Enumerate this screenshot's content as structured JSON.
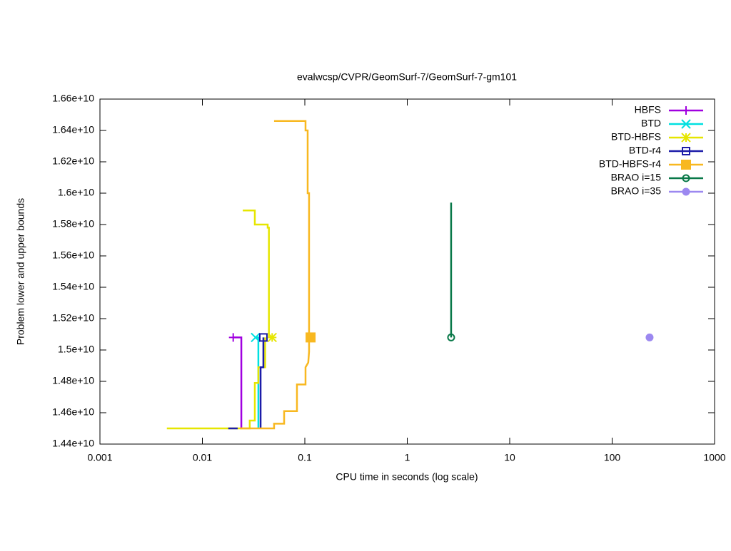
{
  "chart_data": {
    "type": "line",
    "title": "evalwcsp/CVPR/GeomSurf-7/GeomSurf-7-gm101",
    "x_label": "CPU time in seconds (log scale)",
    "y_label": "Problem lower and upper bounds",
    "x_log": true,
    "xlim": [
      0.001,
      1000
    ],
    "xticks": [
      0.001,
      0.01,
      0.1,
      1,
      10,
      100,
      1000
    ],
    "ylim": [
      14400000000,
      16600000000
    ],
    "yticks": [
      {
        "value": 14400000000,
        "label": "1.44e+10"
      },
      {
        "value": 14600000000,
        "label": "1.46e+10"
      },
      {
        "value": 14800000000,
        "label": "1.48e+10"
      },
      {
        "value": 15000000000,
        "label": "1.5e+10"
      },
      {
        "value": 15200000000,
        "label": "1.52e+10"
      },
      {
        "value": 15400000000,
        "label": "1.54e+10"
      },
      {
        "value": 15600000000,
        "label": "1.56e+10"
      },
      {
        "value": 15800000000,
        "label": "1.58e+10"
      },
      {
        "value": 16000000000,
        "label": "1.6e+10"
      },
      {
        "value": 16200000000,
        "label": "1.62e+10"
      },
      {
        "value": 16400000000,
        "label": "1.64e+10"
      },
      {
        "value": 16600000000,
        "label": "1.66e+10"
      }
    ],
    "legend": "top-right",
    "series": [
      {
        "name": "HBFS",
        "color": "#a000e0",
        "marker": "plus",
        "x": [
          0.024,
          0.024,
          0.02
        ],
        "values": [
          14500000000,
          15080000000,
          15080000000
        ]
      },
      {
        "name": "BTD",
        "color": "#00e0e0",
        "marker": "cross",
        "x": [
          0.0352,
          0.0352,
          0.033
        ],
        "values": [
          14500000000,
          15080000000,
          15080000000
        ]
      },
      {
        "name": "BTD-HBFS",
        "color": "#e6e600",
        "marker": "star",
        "x": [
          0.0045,
          0.029,
          0.029,
          0.0325,
          0.0325,
          0.0352,
          0.0352,
          0.041,
          0.041,
          null,
          0.0248,
          0.0325,
          0.0325,
          0.0434,
          0.0434,
          0.0446,
          0.0446,
          0.048
        ],
        "values": [
          14500000000,
          14500000000,
          14550000000,
          14550000000,
          14790000000,
          14790000000,
          14890000000,
          14890000000,
          15080000000,
          null,
          15890000000,
          15890000000,
          15800000000,
          15800000000,
          15780000000,
          15780000000,
          15080000000,
          15080000000
        ]
      },
      {
        "name": "BTD-r4",
        "color": "#1c1ca8",
        "marker": "open-square",
        "x": [
          0.0179,
          0.0221,
          null,
          0.037,
          0.037,
          0.0394,
          0.0394
        ],
        "values": [
          14500000000,
          14500000000,
          null,
          14500000000,
          14890000000,
          14890000000,
          15080000000
        ]
      },
      {
        "name": "BTD-HBFS-r4",
        "color": "#f8b820",
        "marker": "filled-square",
        "x": [
          0.0232,
          0.0501,
          0.0501,
          0.0628,
          0.0628,
          0.0838,
          0.0838,
          0.1016,
          0.1016,
          0.108,
          0.11,
          0.11,
          null,
          0.0501,
          0.1016,
          0.1016,
          0.1066,
          0.1066,
          0.11,
          0.11,
          0.1138
        ],
        "values": [
          14500000000,
          14500000000,
          14530000000,
          14530000000,
          14610000000,
          14610000000,
          14780000000,
          14780000000,
          14890000000,
          14920000000,
          14990000000,
          15080000000,
          null,
          16460000000,
          16460000000,
          16400000000,
          16400000000,
          16000000000,
          16000000000,
          15080000000,
          15080000000
        ]
      },
      {
        "name": "BRAO i=15",
        "color": "#087848",
        "marker": "open-circle",
        "x": [
          2.68,
          2.68
        ],
        "values": [
          15940000000,
          15080000000
        ]
      },
      {
        "name": "BRAO i=35",
        "color": "#9c88f0",
        "marker": "filled-circle",
        "x": [
          232
        ],
        "values": [
          15080000000
        ]
      }
    ]
  }
}
